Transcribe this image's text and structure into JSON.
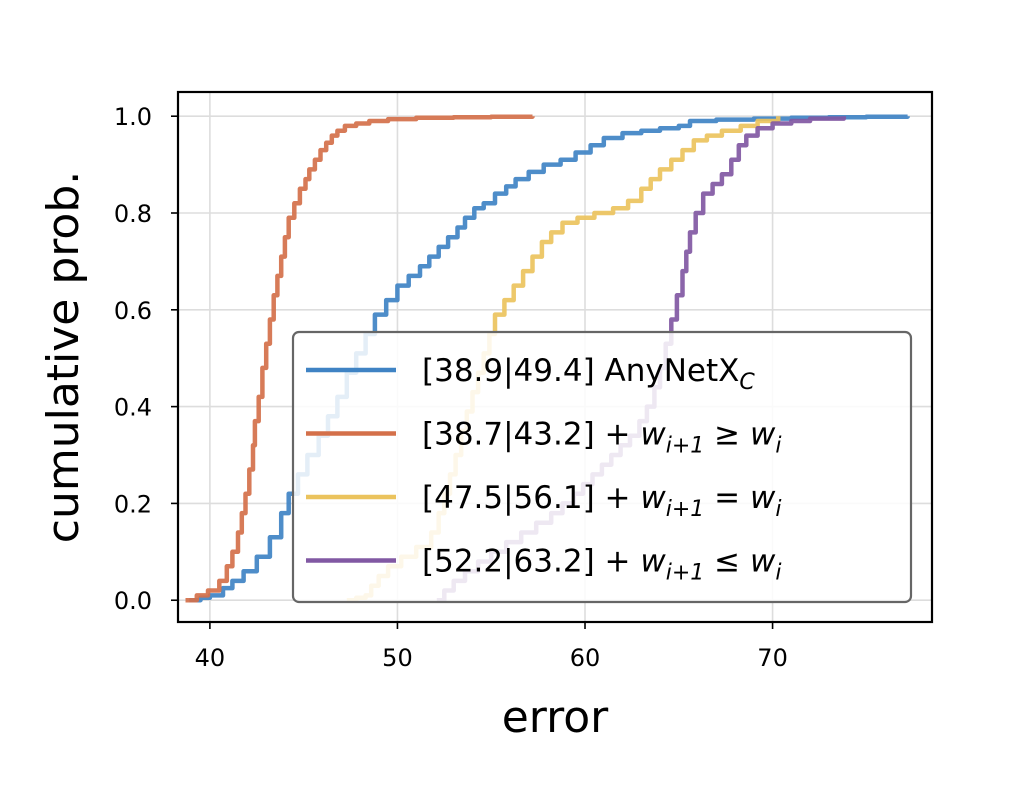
{
  "chart_data": {
    "type": "line",
    "xlabel": "error",
    "ylabel": "cumulative prob.",
    "xlim": [
      38.3,
      78.5
    ],
    "ylim": [
      -0.045,
      1.05
    ],
    "xticks": [
      40,
      50,
      60,
      70
    ],
    "yticks": [
      0.0,
      0.2,
      0.4,
      0.6,
      0.8,
      1.0
    ],
    "xtick_labels": [
      "40",
      "50",
      "60",
      "70"
    ],
    "ytick_labels": [
      "0.0",
      "0.2",
      "0.4",
      "0.6",
      "0.8",
      "1.0"
    ],
    "grid": true,
    "legend_position": "lower-right",
    "series": [
      {
        "name": "[38.9|49.4] AnyNetX",
        "name_sub": "C",
        "color": "#3f83c4",
        "points": [
          [
            38.9,
            0.0
          ],
          [
            39.5,
            0.005
          ],
          [
            40.0,
            0.01
          ],
          [
            40.7,
            0.025
          ],
          [
            41.2,
            0.04
          ],
          [
            41.8,
            0.06
          ],
          [
            42.5,
            0.09
          ],
          [
            43.2,
            0.13
          ],
          [
            43.8,
            0.18
          ],
          [
            44.2,
            0.22
          ],
          [
            44.7,
            0.26
          ],
          [
            45.2,
            0.3
          ],
          [
            45.8,
            0.34
          ],
          [
            46.3,
            0.38
          ],
          [
            46.8,
            0.42
          ],
          [
            47.3,
            0.47
          ],
          [
            47.8,
            0.51
          ],
          [
            48.3,
            0.55
          ],
          [
            48.8,
            0.59
          ],
          [
            49.4,
            0.62
          ],
          [
            50.0,
            0.65
          ],
          [
            50.6,
            0.67
          ],
          [
            51.2,
            0.69
          ],
          [
            51.7,
            0.71
          ],
          [
            52.2,
            0.73
          ],
          [
            52.7,
            0.75
          ],
          [
            53.2,
            0.77
          ],
          [
            53.6,
            0.79
          ],
          [
            54.1,
            0.81
          ],
          [
            54.6,
            0.82
          ],
          [
            55.2,
            0.84
          ],
          [
            55.8,
            0.855
          ],
          [
            56.3,
            0.87
          ],
          [
            57.0,
            0.885
          ],
          [
            57.8,
            0.9
          ],
          [
            58.7,
            0.91
          ],
          [
            59.5,
            0.925
          ],
          [
            60.3,
            0.94
          ],
          [
            61.0,
            0.955
          ],
          [
            62.0,
            0.965
          ],
          [
            63.0,
            0.97
          ],
          [
            64.0,
            0.975
          ],
          [
            65.0,
            0.98
          ],
          [
            65.6,
            0.99
          ],
          [
            67.0,
            0.993
          ],
          [
            69.0,
            0.995
          ],
          [
            71.0,
            0.997
          ],
          [
            73.0,
            0.998
          ],
          [
            75.0,
            0.999
          ],
          [
            77.2,
            1.0
          ]
        ]
      },
      {
        "name": "[38.7|43.2] + ",
        "math": [
          "w",
          "i+1",
          "≥",
          "w",
          "i"
        ],
        "color": "#d4704a",
        "points": [
          [
            38.7,
            0.0
          ],
          [
            39.3,
            0.01
          ],
          [
            39.9,
            0.02
          ],
          [
            40.5,
            0.04
          ],
          [
            40.9,
            0.07
          ],
          [
            41.2,
            0.1
          ],
          [
            41.5,
            0.14
          ],
          [
            41.7,
            0.18
          ],
          [
            41.9,
            0.22
          ],
          [
            42.1,
            0.27
          ],
          [
            42.3,
            0.32
          ],
          [
            42.4,
            0.37
          ],
          [
            42.6,
            0.42
          ],
          [
            42.8,
            0.48
          ],
          [
            43.0,
            0.53
          ],
          [
            43.2,
            0.58
          ],
          [
            43.4,
            0.63
          ],
          [
            43.6,
            0.67
          ],
          [
            43.8,
            0.71
          ],
          [
            44.0,
            0.75
          ],
          [
            44.2,
            0.79
          ],
          [
            44.5,
            0.82
          ],
          [
            44.8,
            0.85
          ],
          [
            45.1,
            0.87
          ],
          [
            45.3,
            0.89
          ],
          [
            45.6,
            0.91
          ],
          [
            45.9,
            0.93
          ],
          [
            46.2,
            0.945
          ],
          [
            46.5,
            0.96
          ],
          [
            46.8,
            0.97
          ],
          [
            47.2,
            0.98
          ],
          [
            47.8,
            0.985
          ],
          [
            48.5,
            0.99
          ],
          [
            49.5,
            0.994
          ],
          [
            51.0,
            0.997
          ],
          [
            53.0,
            0.998
          ],
          [
            55.0,
            0.999
          ],
          [
            57.2,
            1.0
          ]
        ]
      },
      {
        "name": "[47.5|56.1] + ",
        "math": [
          "w",
          "i+1",
          "=",
          "w",
          "i"
        ],
        "color": "#ebc35d",
        "points": [
          [
            47.3,
            0.0
          ],
          [
            47.8,
            0.005
          ],
          [
            48.3,
            0.01
          ],
          [
            48.6,
            0.03
          ],
          [
            49.0,
            0.05
          ],
          [
            49.5,
            0.07
          ],
          [
            50.2,
            0.09
          ],
          [
            51.0,
            0.11
          ],
          [
            51.8,
            0.14
          ],
          [
            52.2,
            0.18
          ],
          [
            52.5,
            0.22
          ],
          [
            52.8,
            0.26
          ],
          [
            53.1,
            0.3
          ],
          [
            53.4,
            0.35
          ],
          [
            53.7,
            0.39
          ],
          [
            54.0,
            0.43
          ],
          [
            54.3,
            0.47
          ],
          [
            54.6,
            0.51
          ],
          [
            54.9,
            0.55
          ],
          [
            55.2,
            0.59
          ],
          [
            55.7,
            0.62
          ],
          [
            56.2,
            0.65
          ],
          [
            56.7,
            0.68
          ],
          [
            57.2,
            0.71
          ],
          [
            57.7,
            0.74
          ],
          [
            58.2,
            0.76
          ],
          [
            58.8,
            0.78
          ],
          [
            59.6,
            0.79
          ],
          [
            60.5,
            0.8
          ],
          [
            61.5,
            0.81
          ],
          [
            62.3,
            0.825
          ],
          [
            63.0,
            0.85
          ],
          [
            63.5,
            0.87
          ],
          [
            64.0,
            0.89
          ],
          [
            64.6,
            0.91
          ],
          [
            65.2,
            0.93
          ],
          [
            65.8,
            0.95
          ],
          [
            66.5,
            0.96
          ],
          [
            67.3,
            0.97
          ],
          [
            68.3,
            0.98
          ],
          [
            69.2,
            0.99
          ],
          [
            70.3,
            1.0
          ]
        ]
      },
      {
        "name": "[52.2|63.2] + ",
        "math": [
          "w",
          "i+1",
          "≤",
          "w",
          "i"
        ],
        "color": "#8158a3",
        "points": [
          [
            52.1,
            0.0
          ],
          [
            52.5,
            0.02
          ],
          [
            53.0,
            0.04
          ],
          [
            53.6,
            0.06
          ],
          [
            54.3,
            0.08
          ],
          [
            55.0,
            0.1
          ],
          [
            55.8,
            0.12
          ],
          [
            56.6,
            0.14
          ],
          [
            57.4,
            0.16
          ],
          [
            58.2,
            0.18
          ],
          [
            58.8,
            0.2
          ],
          [
            59.4,
            0.22
          ],
          [
            59.9,
            0.24
          ],
          [
            60.4,
            0.26
          ],
          [
            60.9,
            0.28
          ],
          [
            61.4,
            0.3
          ],
          [
            61.9,
            0.32
          ],
          [
            62.4,
            0.34
          ],
          [
            62.9,
            0.37
          ],
          [
            63.3,
            0.4
          ],
          [
            63.7,
            0.44
          ],
          [
            64.0,
            0.48
          ],
          [
            64.3,
            0.53
          ],
          [
            64.6,
            0.58
          ],
          [
            64.9,
            0.63
          ],
          [
            65.2,
            0.68
          ],
          [
            65.4,
            0.72
          ],
          [
            65.6,
            0.76
          ],
          [
            65.9,
            0.8
          ],
          [
            66.3,
            0.84
          ],
          [
            66.8,
            0.86
          ],
          [
            67.3,
            0.88
          ],
          [
            67.8,
            0.91
          ],
          [
            68.2,
            0.94
          ],
          [
            68.6,
            0.96
          ],
          [
            69.2,
            0.975
          ],
          [
            70.0,
            0.985
          ],
          [
            71.0,
            0.99
          ],
          [
            72.0,
            0.995
          ],
          [
            73.8,
            1.0
          ]
        ]
      }
    ]
  }
}
